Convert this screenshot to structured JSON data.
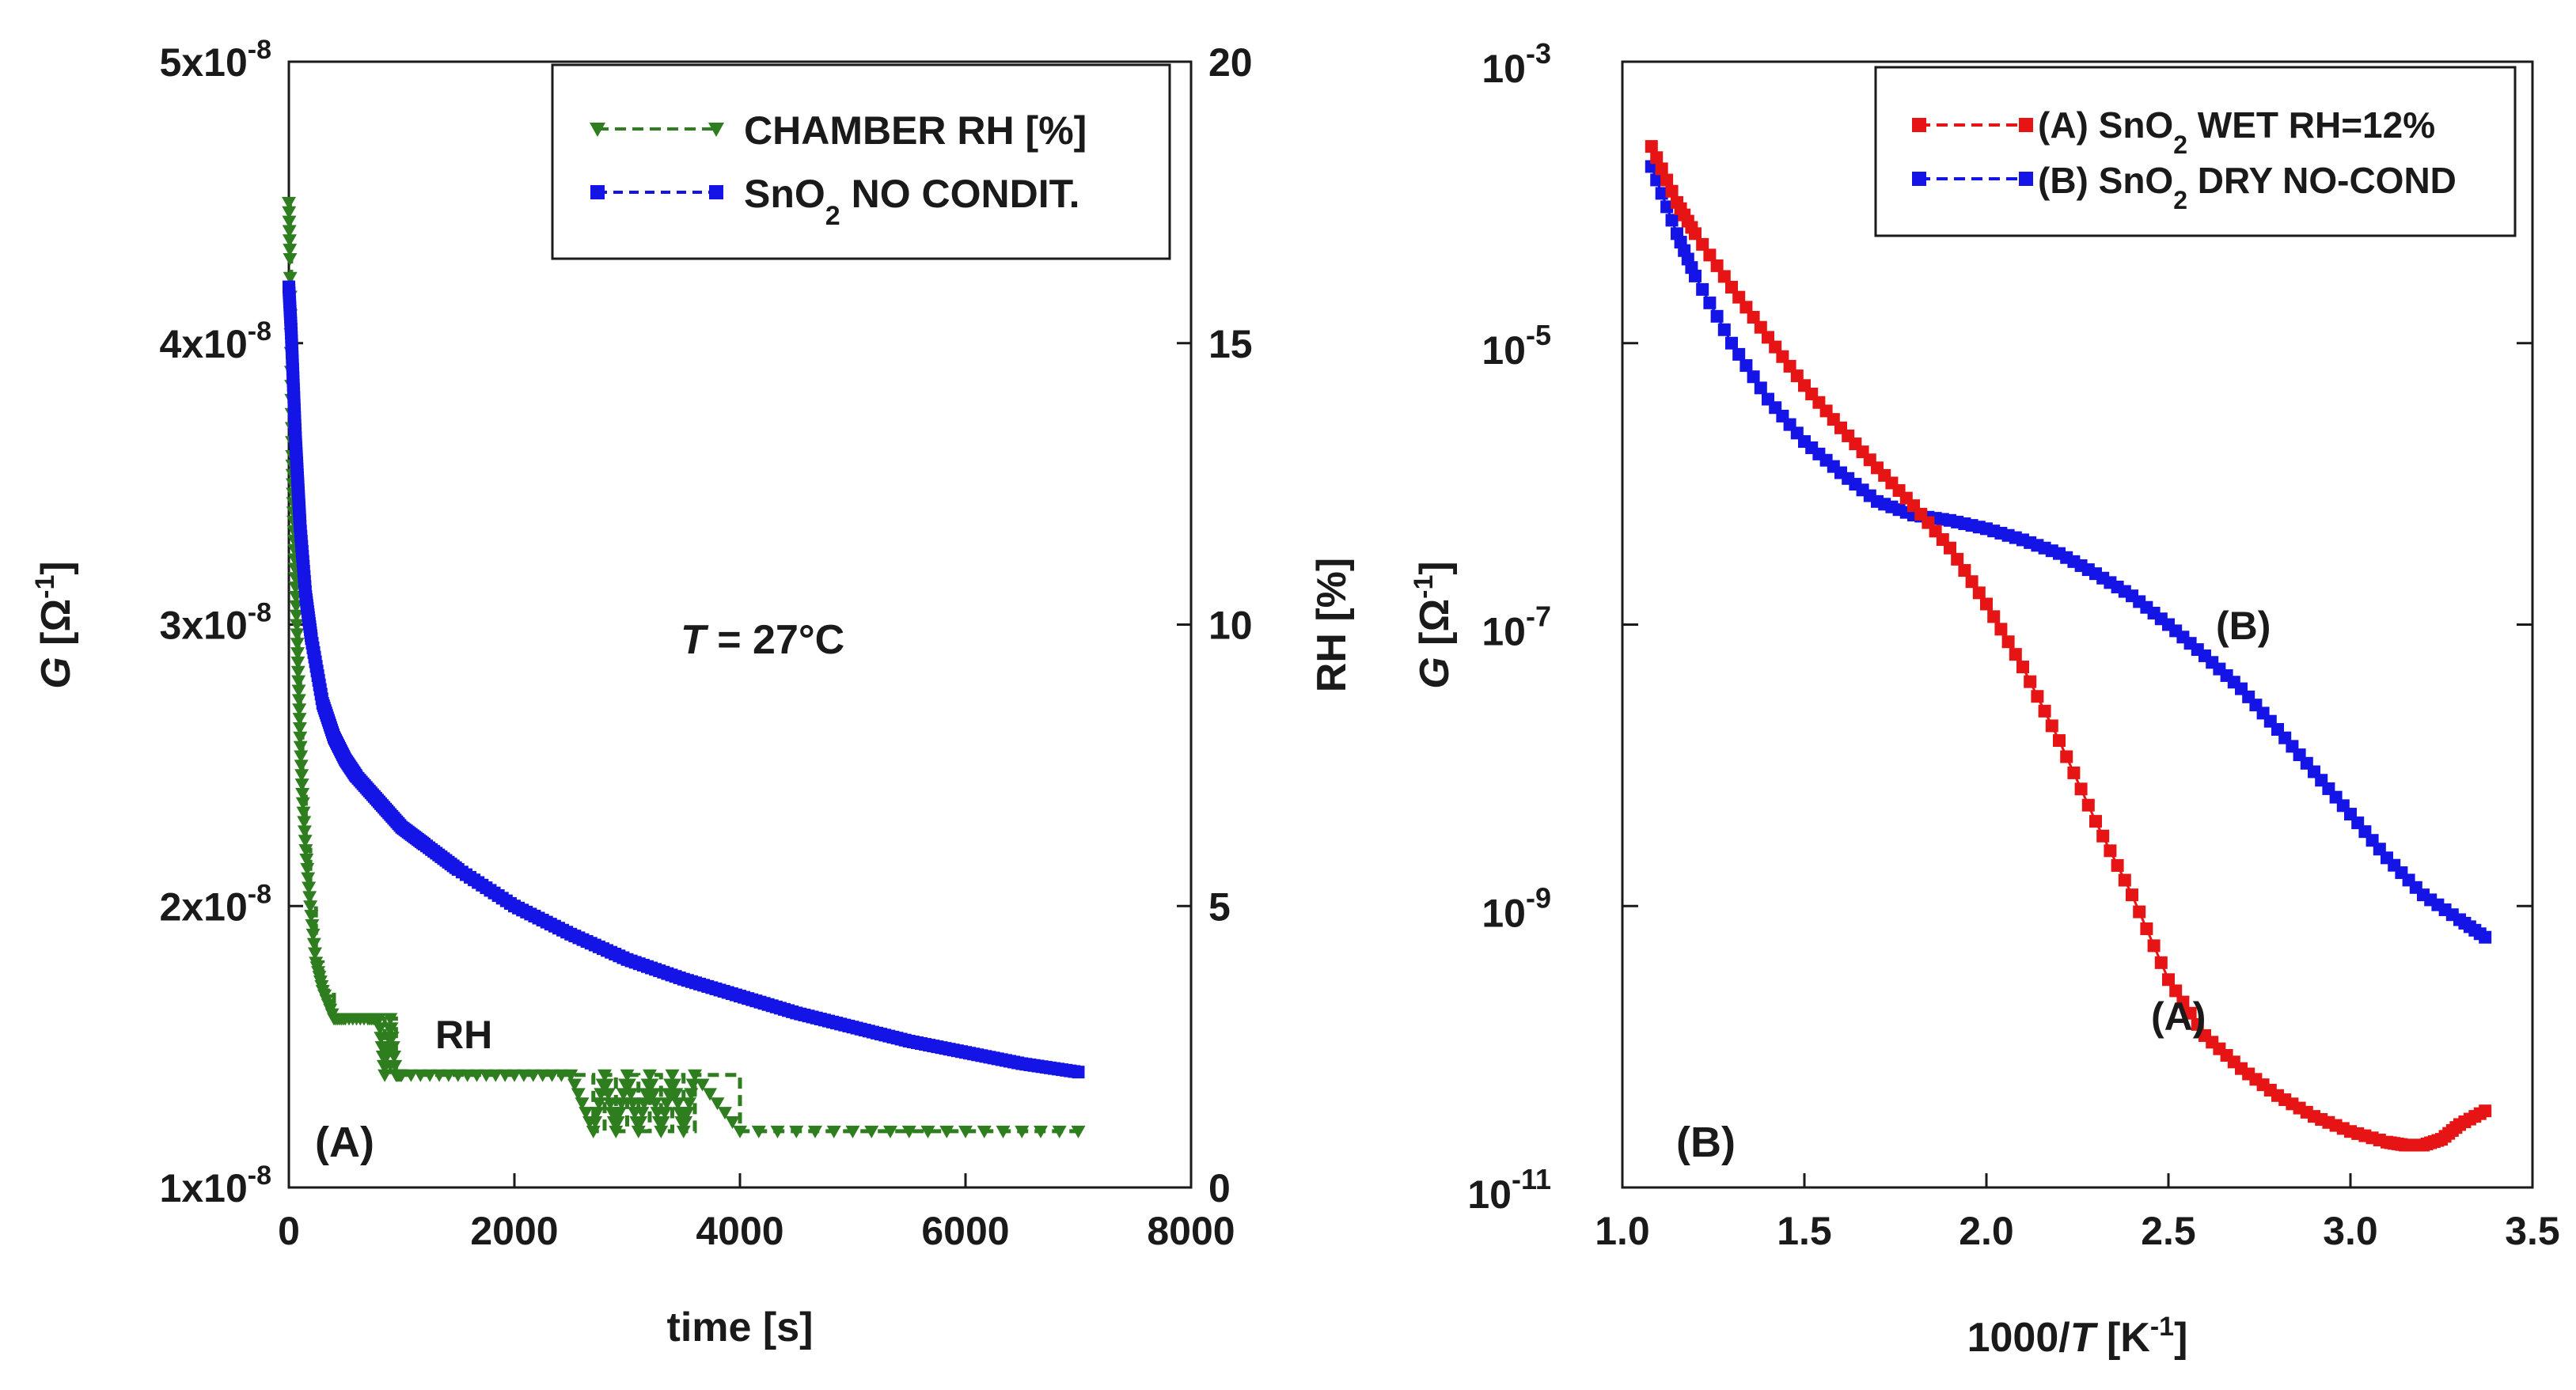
{
  "colors": {
    "green": "#2e7d1e",
    "blue": "#1414e6",
    "red": "#e61414",
    "axis": "#1a1a1a"
  },
  "chart_data": [
    {
      "type": "line",
      "panel_label": "(A)",
      "annotation": "T = 27°C",
      "annotation_italic": "T",
      "annotation_rest": " = 27°C",
      "curve_label_rh": "RH",
      "xlabel": "time [s]",
      "xlim": [
        0,
        8000
      ],
      "x_ticks": [
        "0",
        "2000",
        "4000",
        "6000",
        "8000"
      ],
      "ylabel_left": "G [Ω-1]",
      "ylabel_left_parts": {
        "italic": "G",
        "bracket_open": " [Ω",
        "sup": "-1",
        "bracket_close": "]"
      },
      "ylim_left": [
        1e-08,
        5e-08
      ],
      "y_ticks_left": [
        {
          "mantissa": "1x10",
          "exp": "-8"
        },
        {
          "mantissa": "2x10",
          "exp": "-8"
        },
        {
          "mantissa": "3x10",
          "exp": "-8"
        },
        {
          "mantissa": "4x10",
          "exp": "-8"
        },
        {
          "mantissa": "5x10",
          "exp": "-8"
        }
      ],
      "ylabel_right": "RH [%]",
      "ylim_right": [
        0,
        20
      ],
      "y_ticks_right": [
        "0",
        "5",
        "10",
        "15",
        "20"
      ],
      "legend": {
        "position": "top-right",
        "entries": [
          {
            "label": "CHAMBER RH [%]",
            "base": "CHAMBER RH [%]",
            "sub": "",
            "rest": ""
          },
          {
            "label": "SnO2 NO CONDIT.",
            "base": "SnO",
            "sub": "2",
            "rest": " NO CONDIT."
          }
        ]
      },
      "series": [
        {
          "name": "CHAMBER RH [%]",
          "axis": "right",
          "marker": "triangle-down",
          "x": [
            0,
            10,
            20,
            30,
            40,
            55,
            70,
            85,
            100,
            120,
            150,
            190,
            240,
            300,
            400,
            500,
            700,
            800,
            850,
            900,
            950,
            1000,
            1500,
            2000,
            2500,
            2700,
            2800,
            2900,
            3000,
            3100,
            3200,
            3300,
            3400,
            3500,
            3600,
            4000,
            5000,
            6000,
            7000
          ],
          "y": [
            17.5,
            16.5,
            14.5,
            13.0,
            12.0,
            11.0,
            10.0,
            9.0,
            8.0,
            7.0,
            6.0,
            5.0,
            4.0,
            3.5,
            3.0,
            3.0,
            3.0,
            3.0,
            2.0,
            3.0,
            2.0,
            2.0,
            2.0,
            2.0,
            2.0,
            1.0,
            2.0,
            1.0,
            2.0,
            1.0,
            2.0,
            1.0,
            2.0,
            1.0,
            2.0,
            1.0,
            1.0,
            1.0,
            1.0
          ]
        },
        {
          "name": "SnO2 NO CONDIT.",
          "axis": "left",
          "marker": "square",
          "x": [
            0,
            20,
            40,
            60,
            80,
            100,
            150,
            200,
            300,
            400,
            500,
            600,
            800,
            1000,
            1200,
            1500,
            2000,
            2500,
            3000,
            3500,
            4000,
            4500,
            5000,
            5500,
            6000,
            6500,
            7000
          ],
          "y": [
            4.2e-08,
            4.05e-08,
            3.85e-08,
            3.65e-08,
            3.5e-08,
            3.35e-08,
            3.1e-08,
            2.95e-08,
            2.72e-08,
            2.6e-08,
            2.52e-08,
            2.46e-08,
            2.37e-08,
            2.28e-08,
            2.22e-08,
            2.13e-08,
            2e-08,
            1.9e-08,
            1.81e-08,
            1.74e-08,
            1.68e-08,
            1.62e-08,
            1.57e-08,
            1.52e-08,
            1.48e-08,
            1.44e-08,
            1.41e-08
          ]
        }
      ]
    },
    {
      "type": "line",
      "panel_label": "(B)",
      "xlabel": "1000/T [K-1]",
      "xlabel_parts": {
        "pre": "1000/",
        "italic": "T",
        "bracket_open": " [K",
        "sup": "-1",
        "bracket_close": "]"
      },
      "xlim": [
        1.0,
        3.5
      ],
      "x_ticks": [
        "1.0",
        "1.5",
        "2.0",
        "2.5",
        "3.0",
        "3.5"
      ],
      "ylabel": "G [Ω-1]",
      "ylabel_parts": {
        "italic": "G",
        "bracket_open": " [Ω",
        "sup": "-1",
        "bracket_close": "]"
      },
      "yscale": "log",
      "ylim": [
        1e-11,
        0.001
      ],
      "y_ticks": [
        {
          "base": "10",
          "exp": "-11"
        },
        {
          "base": "10",
          "exp": "-9"
        },
        {
          "base": "10",
          "exp": "-7"
        },
        {
          "base": "10",
          "exp": "-5"
        },
        {
          "base": "10",
          "exp": "-3"
        }
      ],
      "curve_labels": [
        "(A)",
        "(B)"
      ],
      "legend": {
        "position": "top-right",
        "entries": [
          {
            "label": "(A) SnO2 WET RH=12%",
            "pre": "(A) SnO",
            "sub": "2",
            "rest": " WET RH=12%"
          },
          {
            "label": "(B) SnO2 DRY NO-COND",
            "pre": "(B) SnO",
            "sub": "2",
            "rest": " DRY NO-COND"
          }
        ]
      },
      "series": [
        {
          "name": "(A) SnO2 WET RH=12%",
          "marker": "square",
          "x": [
            1.08,
            1.15,
            1.2,
            1.3,
            1.4,
            1.5,
            1.6,
            1.7,
            1.8,
            1.9,
            2.0,
            2.1,
            2.2,
            2.3,
            2.4,
            2.5,
            2.6,
            2.7,
            2.8,
            2.9,
            3.0,
            3.1,
            3.15,
            3.2,
            3.25,
            3.3,
            3.37
          ],
          "y": [
            0.00025,
            0.0001,
            6e-05,
            2.5e-05,
            1.1e-05,
            5e-06,
            2.5e-06,
            1.3e-06,
            7e-07,
            3.5e-07,
            1.4e-07,
            5e-08,
            1.5e-08,
            4e-09,
            1.2e-09,
            3e-10,
            1.2e-10,
            7e-11,
            4.5e-11,
            3.2e-11,
            2.5e-11,
            2.1e-11,
            2e-11,
            2e-11,
            2.2e-11,
            2.8e-11,
            3.5e-11
          ]
        },
        {
          "name": "(B) SnO2 DRY NO-COND",
          "marker": "square",
          "x": [
            1.08,
            1.15,
            1.2,
            1.3,
            1.4,
            1.5,
            1.6,
            1.7,
            1.8,
            1.9,
            2.0,
            2.1,
            2.2,
            2.3,
            2.4,
            2.5,
            2.6,
            2.7,
            2.8,
            2.9,
            3.0,
            3.1,
            3.2,
            3.3,
            3.37
          ],
          "y": [
            0.00018,
            6e-05,
            3e-05,
            1e-05,
            4e-06,
            2e-06,
            1.2e-06,
            7.5e-07,
            6e-07,
            5.5e-07,
            4.8e-07,
            4e-07,
            3.2e-07,
            2.3e-07,
            1.6e-07,
            1e-07,
            6e-08,
            3.5e-08,
            1.8e-08,
            9e-09,
            4.5e-09,
            2.2e-09,
            1.2e-09,
            8e-10,
            6e-10
          ]
        }
      ]
    }
  ]
}
